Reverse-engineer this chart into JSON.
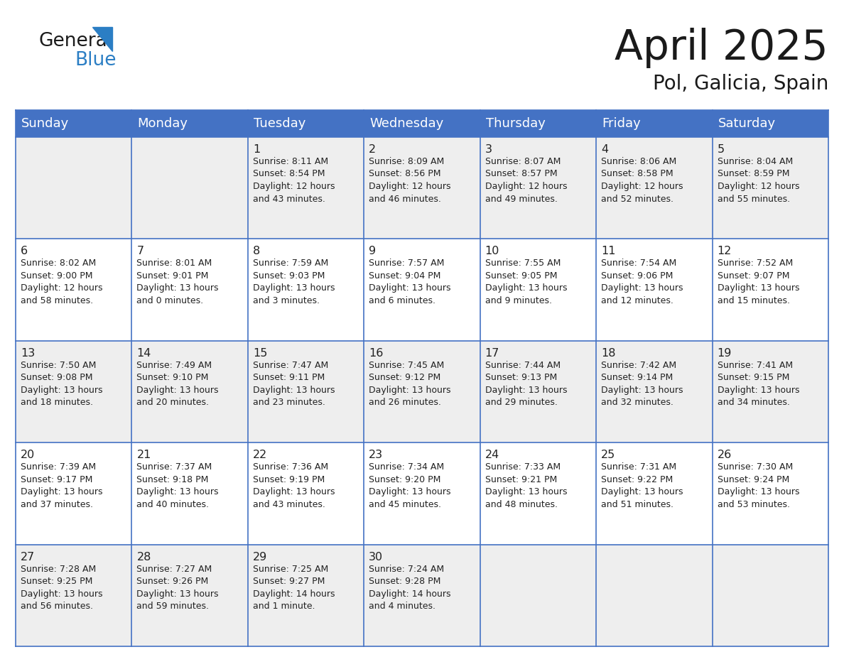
{
  "title": "April 2025",
  "subtitle": "Pol, Galicia, Spain",
  "header_bg_color": "#4472C4",
  "header_text_color": "#FFFFFF",
  "header_font_size": 13,
  "day_headers": [
    "Sunday",
    "Monday",
    "Tuesday",
    "Wednesday",
    "Thursday",
    "Friday",
    "Saturday"
  ],
  "title_font_size": 42,
  "subtitle_font_size": 20,
  "cell_text_color": "#222222",
  "cell_date_font_size": 11.5,
  "cell_info_font_size": 9.0,
  "grid_color": "#4472C4",
  "row_colors": [
    "#EEEEEE",
    "#FFFFFF",
    "#EEEEEE",
    "#FFFFFF",
    "#EEEEEE"
  ],
  "logo_general_color": "#1a1a1a",
  "logo_blue_color": "#2B7EC4",
  "weeks": [
    {
      "days": [
        {
          "date": "",
          "info": ""
        },
        {
          "date": "",
          "info": ""
        },
        {
          "date": "1",
          "info": "Sunrise: 8:11 AM\nSunset: 8:54 PM\nDaylight: 12 hours\nand 43 minutes."
        },
        {
          "date": "2",
          "info": "Sunrise: 8:09 AM\nSunset: 8:56 PM\nDaylight: 12 hours\nand 46 minutes."
        },
        {
          "date": "3",
          "info": "Sunrise: 8:07 AM\nSunset: 8:57 PM\nDaylight: 12 hours\nand 49 minutes."
        },
        {
          "date": "4",
          "info": "Sunrise: 8:06 AM\nSunset: 8:58 PM\nDaylight: 12 hours\nand 52 minutes."
        },
        {
          "date": "5",
          "info": "Sunrise: 8:04 AM\nSunset: 8:59 PM\nDaylight: 12 hours\nand 55 minutes."
        }
      ]
    },
    {
      "days": [
        {
          "date": "6",
          "info": "Sunrise: 8:02 AM\nSunset: 9:00 PM\nDaylight: 12 hours\nand 58 minutes."
        },
        {
          "date": "7",
          "info": "Sunrise: 8:01 AM\nSunset: 9:01 PM\nDaylight: 13 hours\nand 0 minutes."
        },
        {
          "date": "8",
          "info": "Sunrise: 7:59 AM\nSunset: 9:03 PM\nDaylight: 13 hours\nand 3 minutes."
        },
        {
          "date": "9",
          "info": "Sunrise: 7:57 AM\nSunset: 9:04 PM\nDaylight: 13 hours\nand 6 minutes."
        },
        {
          "date": "10",
          "info": "Sunrise: 7:55 AM\nSunset: 9:05 PM\nDaylight: 13 hours\nand 9 minutes."
        },
        {
          "date": "11",
          "info": "Sunrise: 7:54 AM\nSunset: 9:06 PM\nDaylight: 13 hours\nand 12 minutes."
        },
        {
          "date": "12",
          "info": "Sunrise: 7:52 AM\nSunset: 9:07 PM\nDaylight: 13 hours\nand 15 minutes."
        }
      ]
    },
    {
      "days": [
        {
          "date": "13",
          "info": "Sunrise: 7:50 AM\nSunset: 9:08 PM\nDaylight: 13 hours\nand 18 minutes."
        },
        {
          "date": "14",
          "info": "Sunrise: 7:49 AM\nSunset: 9:10 PM\nDaylight: 13 hours\nand 20 minutes."
        },
        {
          "date": "15",
          "info": "Sunrise: 7:47 AM\nSunset: 9:11 PM\nDaylight: 13 hours\nand 23 minutes."
        },
        {
          "date": "16",
          "info": "Sunrise: 7:45 AM\nSunset: 9:12 PM\nDaylight: 13 hours\nand 26 minutes."
        },
        {
          "date": "17",
          "info": "Sunrise: 7:44 AM\nSunset: 9:13 PM\nDaylight: 13 hours\nand 29 minutes."
        },
        {
          "date": "18",
          "info": "Sunrise: 7:42 AM\nSunset: 9:14 PM\nDaylight: 13 hours\nand 32 minutes."
        },
        {
          "date": "19",
          "info": "Sunrise: 7:41 AM\nSunset: 9:15 PM\nDaylight: 13 hours\nand 34 minutes."
        }
      ]
    },
    {
      "days": [
        {
          "date": "20",
          "info": "Sunrise: 7:39 AM\nSunset: 9:17 PM\nDaylight: 13 hours\nand 37 minutes."
        },
        {
          "date": "21",
          "info": "Sunrise: 7:37 AM\nSunset: 9:18 PM\nDaylight: 13 hours\nand 40 minutes."
        },
        {
          "date": "22",
          "info": "Sunrise: 7:36 AM\nSunset: 9:19 PM\nDaylight: 13 hours\nand 43 minutes."
        },
        {
          "date": "23",
          "info": "Sunrise: 7:34 AM\nSunset: 9:20 PM\nDaylight: 13 hours\nand 45 minutes."
        },
        {
          "date": "24",
          "info": "Sunrise: 7:33 AM\nSunset: 9:21 PM\nDaylight: 13 hours\nand 48 minutes."
        },
        {
          "date": "25",
          "info": "Sunrise: 7:31 AM\nSunset: 9:22 PM\nDaylight: 13 hours\nand 51 minutes."
        },
        {
          "date": "26",
          "info": "Sunrise: 7:30 AM\nSunset: 9:24 PM\nDaylight: 13 hours\nand 53 minutes."
        }
      ]
    },
    {
      "days": [
        {
          "date": "27",
          "info": "Sunrise: 7:28 AM\nSunset: 9:25 PM\nDaylight: 13 hours\nand 56 minutes."
        },
        {
          "date": "28",
          "info": "Sunrise: 7:27 AM\nSunset: 9:26 PM\nDaylight: 13 hours\nand 59 minutes."
        },
        {
          "date": "29",
          "info": "Sunrise: 7:25 AM\nSunset: 9:27 PM\nDaylight: 14 hours\nand 1 minute."
        },
        {
          "date": "30",
          "info": "Sunrise: 7:24 AM\nSunset: 9:28 PM\nDaylight: 14 hours\nand 4 minutes."
        },
        {
          "date": "",
          "info": ""
        },
        {
          "date": "",
          "info": ""
        },
        {
          "date": "",
          "info": ""
        }
      ]
    }
  ]
}
